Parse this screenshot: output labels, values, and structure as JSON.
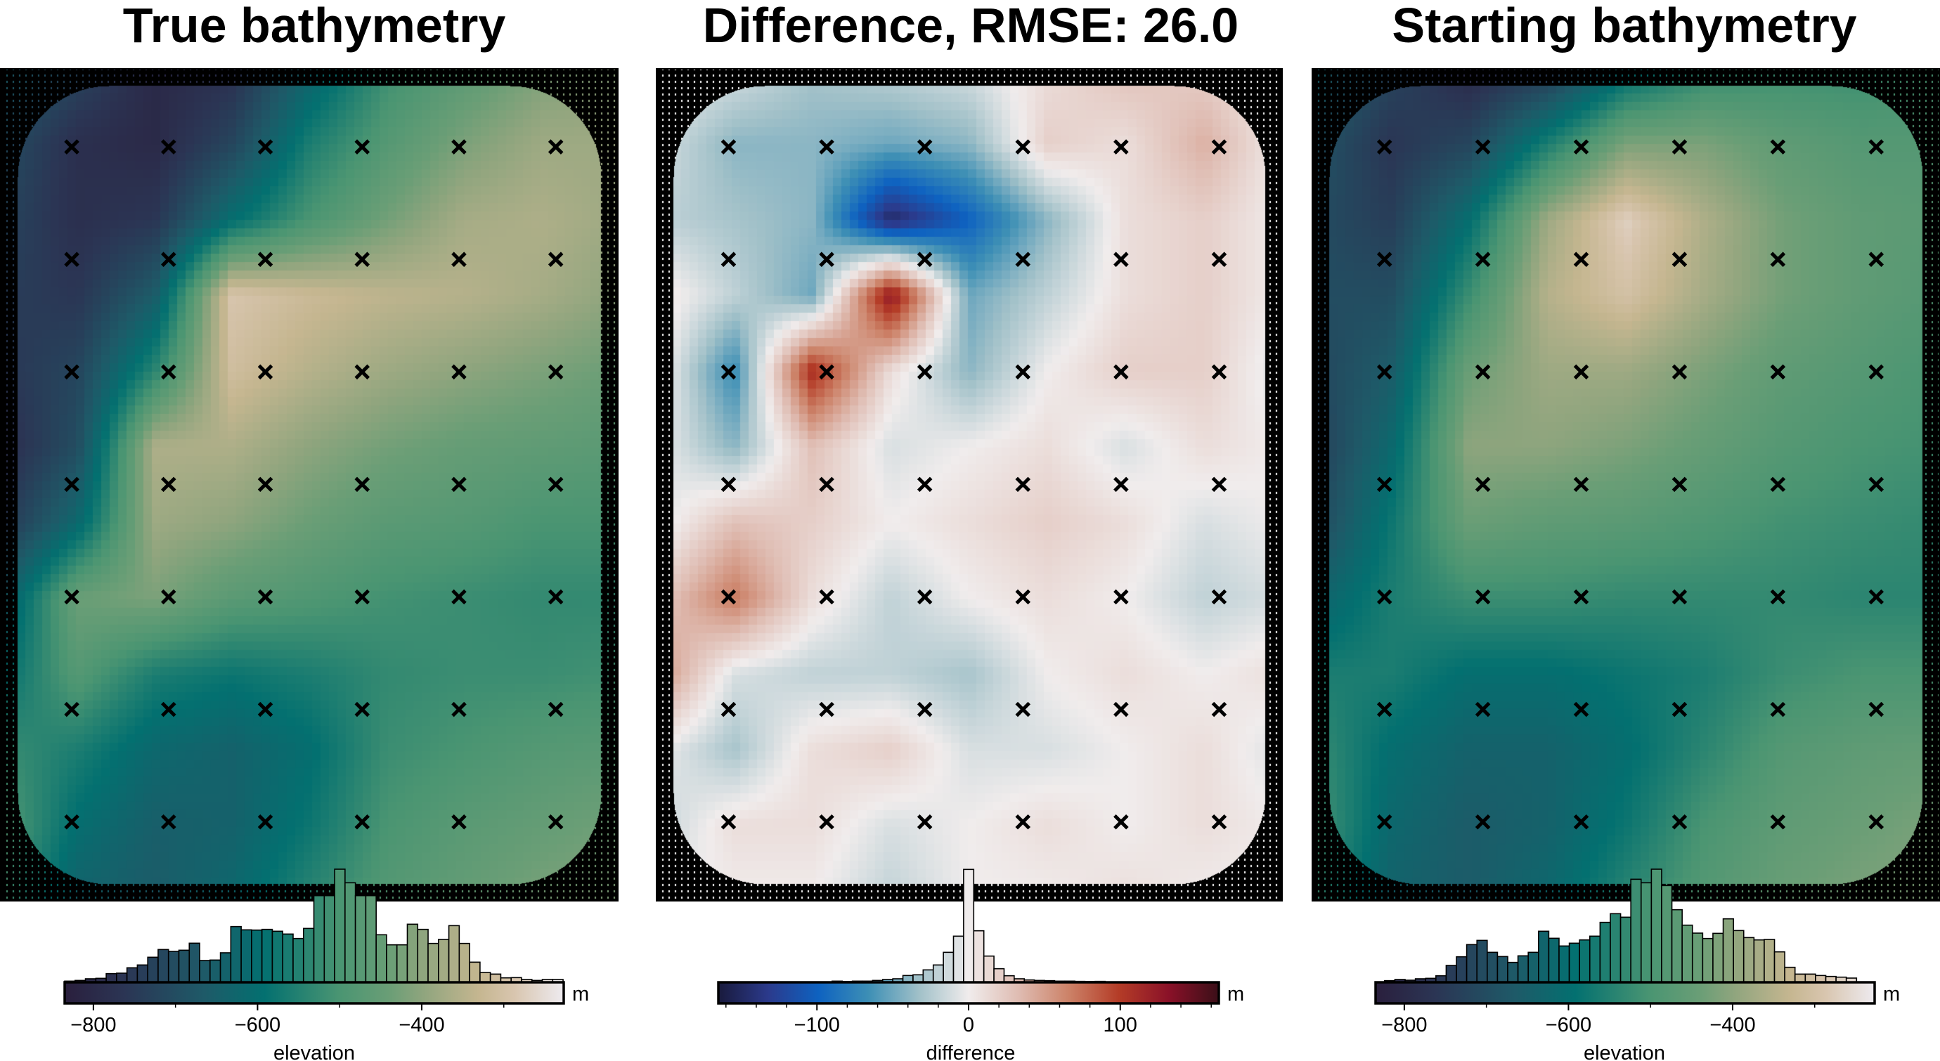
{
  "chart_data": [
    {
      "type": "heatmap",
      "title": "True bathymetry",
      "colorbar": {
        "label": "elevation",
        "unit": "m",
        "range": [
          -835,
          -227
        ],
        "ticks": [
          -800,
          -600,
          -400
        ],
        "minor_ticks": [
          -700,
          -500,
          -300
        ]
      },
      "colormap": [
        [
          0,
          "#2a1f3d"
        ],
        [
          0.12,
          "#2b3554"
        ],
        [
          0.28,
          "#1e5a68"
        ],
        [
          0.4,
          "#037070"
        ],
        [
          0.55,
          "#4a9572"
        ],
        [
          0.65,
          "#6a9e76"
        ],
        [
          0.72,
          "#90a57e"
        ],
        [
          0.83,
          "#c5b690"
        ],
        [
          0.9,
          "#d8c5ae"
        ],
        [
          1,
          "#eeebf0"
        ]
      ],
      "grid_rows_top_to_bottom": [
        [
          -650,
          -720,
          -800,
          -780,
          -640,
          -520,
          -470,
          -420,
          -400
        ],
        [
          -700,
          -780,
          -800,
          -720,
          -560,
          -480,
          -420,
          -380,
          -380
        ],
        [
          -720,
          -780,
          -760,
          -600,
          -500,
          -430,
          -370,
          -360,
          -380
        ],
        [
          -740,
          -760,
          -660,
          -290,
          -320,
          -340,
          -350,
          -370,
          -400
        ],
        [
          -760,
          -720,
          -540,
          -310,
          -350,
          -380,
          -400,
          -420,
          -440
        ],
        [
          -790,
          -700,
          -360,
          -360,
          -400,
          -430,
          -450,
          -460,
          -470
        ],
        [
          -760,
          -620,
          -380,
          -400,
          -440,
          -470,
          -480,
          -500,
          -500
        ],
        [
          -660,
          -440,
          -420,
          -470,
          -490,
          -510,
          -520,
          -530,
          -530
        ],
        [
          -600,
          -480,
          -560,
          -580,
          -560,
          -530,
          -520,
          -520,
          -510
        ],
        [
          -520,
          -560,
          -620,
          -640,
          -600,
          -520,
          -500,
          -480,
          -470
        ],
        [
          -480,
          -600,
          -650,
          -640,
          -580,
          -500,
          -470,
          -450,
          -430
        ],
        [
          -500,
          -640,
          -660,
          -620,
          -540,
          -480,
          -450,
          -420,
          -410
        ]
      ],
      "histogram": {
        "bin_start": -835,
        "bin_width": 12.65,
        "counts": [
          5,
          8,
          15,
          17,
          37,
          39,
          62,
          74,
          107,
          140,
          132,
          137,
          167,
          93,
          95,
          126,
          238,
          224,
          223,
          226,
          218,
          206,
          187,
          230,
          370,
          370,
          483,
          425,
          370,
          370,
          203,
          160,
          160,
          248,
          226,
          166,
          183,
          242,
          166,
          86,
          42,
          35,
          19,
          20,
          12,
          8,
          12,
          12
        ]
      },
      "constraint_points": {
        "cols": 6,
        "rows": 7
      },
      "dot_mode": "data"
    },
    {
      "type": "heatmap",
      "title": "Difference, RMSE: 26.0",
      "colorbar": {
        "label": "difference",
        "unit": "m",
        "range": [
          -165,
          165
        ],
        "ticks": [
          -100,
          0,
          100
        ],
        "minor_ticks": [
          -160,
          -140,
          -120,
          -80,
          -60,
          -40,
          -20,
          20,
          40,
          60,
          80,
          120,
          140,
          160
        ]
      },
      "colormap": [
        [
          0,
          "#191a3c"
        ],
        [
          0.1,
          "#2b3a8c"
        ],
        [
          0.2,
          "#0e62c0"
        ],
        [
          0.3,
          "#3d8fb5"
        ],
        [
          0.4,
          "#a0c0c8"
        ],
        [
          0.5,
          "#f0ecec"
        ],
        [
          0.6,
          "#dfbcb2"
        ],
        [
          0.7,
          "#cc8268"
        ],
        [
          0.8,
          "#b43c27"
        ],
        [
          0.9,
          "#8a1128"
        ],
        [
          1,
          "#3a0f18"
        ]
      ],
      "grid_rows_top_to_bottom": [
        [
          0,
          -10,
          -30,
          -20,
          -10,
          10,
          30,
          20,
          0
        ],
        [
          -10,
          -40,
          -40,
          -50,
          -40,
          20,
          10,
          40,
          0
        ],
        [
          -20,
          -30,
          -40,
          -150,
          -100,
          -40,
          10,
          20,
          0
        ],
        [
          10,
          -20,
          -50,
          130,
          -50,
          -20,
          10,
          20,
          0
        ],
        [
          10,
          -70,
          110,
          10,
          -40,
          0,
          20,
          20,
          -10
        ],
        [
          0,
          -40,
          30,
          -10,
          0,
          10,
          -10,
          10,
          0
        ],
        [
          -10,
          30,
          20,
          0,
          10,
          20,
          10,
          -10,
          0
        ],
        [
          20,
          70,
          10,
          -20,
          0,
          10,
          0,
          -20,
          -10
        ],
        [
          60,
          -10,
          -20,
          -20,
          -30,
          0,
          10,
          0,
          10
        ],
        [
          0,
          -30,
          10,
          20,
          -10,
          -10,
          0,
          10,
          -10
        ],
        [
          -20,
          10,
          10,
          -10,
          0,
          10,
          0,
          10,
          0
        ],
        [
          0,
          0,
          0,
          -20,
          0,
          0,
          10,
          0,
          0
        ]
      ],
      "histogram": {
        "bin_start": -90,
        "bin_width": 6.67,
        "counts": [
          5,
          3,
          5,
          5,
          8,
          12,
          15,
          29,
          32,
          53,
          74,
          128,
          197,
          482,
          220,
          112,
          58,
          28,
          15,
          10,
          8,
          7,
          5,
          5,
          4,
          3,
          4
        ]
      },
      "constraint_points": {
        "cols": 6,
        "rows": 7
      },
      "dot_mode": "white"
    },
    {
      "type": "heatmap",
      "title": "Starting bathymetry",
      "colorbar": {
        "label": "elevation",
        "unit": "m",
        "range": [
          -835,
          -227
        ],
        "ticks": [
          -800,
          -600,
          -400
        ],
        "minor_ticks": [
          -700,
          -500,
          -300
        ]
      },
      "colormap": [
        [
          0,
          "#2a1f3d"
        ],
        [
          0.12,
          "#2b3554"
        ],
        [
          0.28,
          "#1e5a68"
        ],
        [
          0.4,
          "#037070"
        ],
        [
          0.55,
          "#4a9572"
        ],
        [
          0.65,
          "#6a9e76"
        ],
        [
          0.72,
          "#90a57e"
        ],
        [
          0.83,
          "#c5b690"
        ],
        [
          0.9,
          "#d8c5ae"
        ],
        [
          1,
          "#eeebf0"
        ]
      ],
      "grid_rows_top_to_bottom": [
        [
          -640,
          -720,
          -800,
          -760,
          -620,
          -540,
          -520,
          -520,
          -500
        ],
        [
          -680,
          -760,
          -720,
          -560,
          -420,
          -420,
          -460,
          -480,
          -480
        ],
        [
          -700,
          -740,
          -600,
          -380,
          -270,
          -360,
          -430,
          -460,
          -470
        ],
        [
          -700,
          -700,
          -520,
          -350,
          -300,
          -370,
          -430,
          -460,
          -480
        ],
        [
          -720,
          -660,
          -440,
          -380,
          -380,
          -420,
          -460,
          -480,
          -500
        ],
        [
          -740,
          -620,
          -400,
          -400,
          -420,
          -450,
          -480,
          -500,
          -510
        ],
        [
          -720,
          -580,
          -440,
          -460,
          -470,
          -490,
          -510,
          -520,
          -530
        ],
        [
          -640,
          -560,
          -520,
          -520,
          -530,
          -530,
          -530,
          -540,
          -540
        ],
        [
          -560,
          -560,
          -600,
          -600,
          -580,
          -560,
          -520,
          -500,
          -500
        ],
        [
          -520,
          -600,
          -640,
          -640,
          -600,
          -540,
          -480,
          -460,
          -450
        ],
        [
          -500,
          -620,
          -660,
          -640,
          -580,
          -500,
          -460,
          -440,
          -420
        ],
        [
          -520,
          -640,
          -660,
          -620,
          -540,
          -480,
          -440,
          -420,
          -410
        ]
      ],
      "histogram": {
        "bin_start": -824,
        "bin_width": 12.5,
        "counts": [
          7,
          12,
          9,
          15,
          17,
          28,
          72,
          109,
          161,
          179,
          128,
          110,
          85,
          113,
          128,
          218,
          188,
          155,
          167,
          181,
          197,
          256,
          293,
          278,
          440,
          425,
          483,
          413,
          310,
          244,
          210,
          187,
          209,
          271,
          221,
          191,
          181,
          183,
          130,
          64,
          35,
          35,
          29,
          25,
          22,
          18
        ]
      },
      "constraint_points": {
        "cols": 6,
        "rows": 7
      },
      "dot_mode": "data"
    }
  ]
}
